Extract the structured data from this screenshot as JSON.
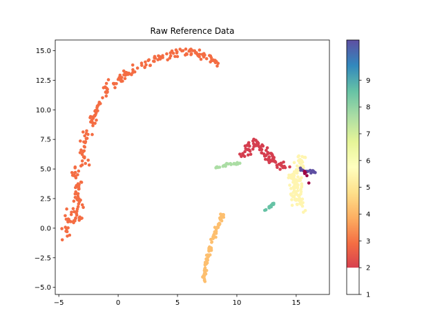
{
  "chart_data": {
    "type": "scatter",
    "title": "Raw Reference Data",
    "xlabel": "",
    "ylabel": "",
    "xlim": [
      -5.3,
      17.8
    ],
    "ylim": [
      -5.6,
      15.9
    ],
    "xticks": [
      -5,
      0,
      5,
      10,
      15
    ],
    "yticks": [
      -5.0,
      -2.5,
      0.0,
      2.5,
      5.0,
      7.5,
      10.0,
      12.5,
      15.0
    ],
    "xtick_labels": [
      "−5",
      "0",
      "5",
      "10",
      "15"
    ],
    "ytick_labels": [
      "−5.0",
      "−2.5",
      "0.0",
      "2.5",
      "5.0",
      "7.5",
      "10.0",
      "12.5",
      "15.0"
    ],
    "grid": false,
    "colormap": "Spectral",
    "colorbar": {
      "range": [
        1,
        10.5
      ],
      "ticks": [
        1,
        2,
        3,
        4,
        5,
        6,
        7,
        8,
        9
      ],
      "tick_labels": [
        "1",
        "2",
        "3",
        "4",
        "5",
        "6",
        "7",
        "8",
        "9"
      ],
      "white_below": 2
    },
    "series": [
      {
        "label_value": 4,
        "color": "#f46d43",
        "path": [
          [
            -4.5,
            -0.6
          ],
          [
            -4.0,
            1.5
          ],
          [
            -3.3,
            0.5
          ],
          [
            -3.5,
            2.5
          ],
          [
            -3.3,
            4.0
          ],
          [
            -3.8,
            4.6
          ],
          [
            -2.8,
            5.5
          ],
          [
            -3.0,
            7.0
          ],
          [
            -2.4,
            8.5
          ],
          [
            -1.8,
            9.8
          ],
          [
            -1.2,
            11.0
          ],
          [
            -0.6,
            12.0
          ],
          [
            0.6,
            13.0
          ],
          [
            2.0,
            13.8
          ],
          [
            3.6,
            14.4
          ],
          [
            5.0,
            14.8
          ],
          [
            6.4,
            14.9
          ],
          [
            7.6,
            14.5
          ],
          [
            8.5,
            13.7
          ]
        ],
        "count": 260,
        "spread": 0.3
      },
      {
        "label_value": 5,
        "color": "#fdbf6f",
        "path": [
          [
            7.2,
            -4.5
          ],
          [
            7.4,
            -3.0
          ],
          [
            7.8,
            -1.5
          ],
          [
            8.2,
            -0.3
          ],
          [
            8.6,
            0.8
          ],
          [
            8.9,
            1.3
          ]
        ],
        "count": 90,
        "spread": 0.15
      },
      {
        "label_value": 3,
        "color": "#d53e4f",
        "path": [
          [
            10.6,
            6.0
          ],
          [
            11.3,
            7.3
          ],
          [
            12.2,
            6.6
          ],
          [
            13.2,
            5.6
          ],
          [
            14.1,
            5.1
          ]
        ],
        "count": 90,
        "spread": 0.35
      },
      {
        "label_value": 7.5,
        "color": "#abdda4",
        "path": [
          [
            8.2,
            5.1
          ],
          [
            9.2,
            5.4
          ],
          [
            10.2,
            5.5
          ]
        ],
        "count": 30,
        "spread": 0.08
      },
      {
        "label_value": 8.5,
        "color": "#66c2a5",
        "path": [
          [
            12.3,
            1.4
          ],
          [
            12.8,
            1.8
          ],
          [
            13.1,
            2.1
          ]
        ],
        "count": 18,
        "spread": 0.06
      },
      {
        "label_value": 6.5,
        "color": "#fff5b0",
        "path": [
          [
            15.4,
            6.0
          ],
          [
            15.3,
            5.2
          ],
          [
            14.7,
            4.5
          ],
          [
            15.2,
            3.5
          ],
          [
            15.1,
            2.6
          ],
          [
            15.3,
            1.9
          ]
        ],
        "count": 110,
        "spread": 0.45
      },
      {
        "label_value": 10.5,
        "color": "#5e4fa2",
        "path": [
          [
            15.3,
            5.0
          ],
          [
            15.8,
            4.7
          ],
          [
            16.3,
            4.8
          ],
          [
            16.6,
            4.7
          ]
        ],
        "count": 24,
        "spread": 0.08
      },
      {
        "label_value": 2,
        "color": "#9e0142",
        "path": [
          [
            15.7,
            5.0
          ],
          [
            15.9,
            4.2
          ],
          [
            16.0,
            3.6
          ]
        ],
        "count": 6,
        "spread": 0.1
      }
    ]
  }
}
